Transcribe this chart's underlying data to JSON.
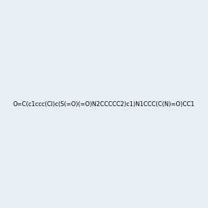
{
  "smiles": "O=C(c1ccc(Cl)c(S(=O)(=O)N2CCCCC2)c1)N1CCC(C(N)=O)CC1",
  "title": "",
  "bg_color": "#e8eef5",
  "img_size": [
    300,
    300
  ],
  "atom_colors": {
    "N": "#0000ff",
    "O": "#ff0000",
    "S": "#ffff00",
    "Cl": "#00cc00",
    "C": "#1a6b1a",
    "H": "#6b8e8e"
  }
}
